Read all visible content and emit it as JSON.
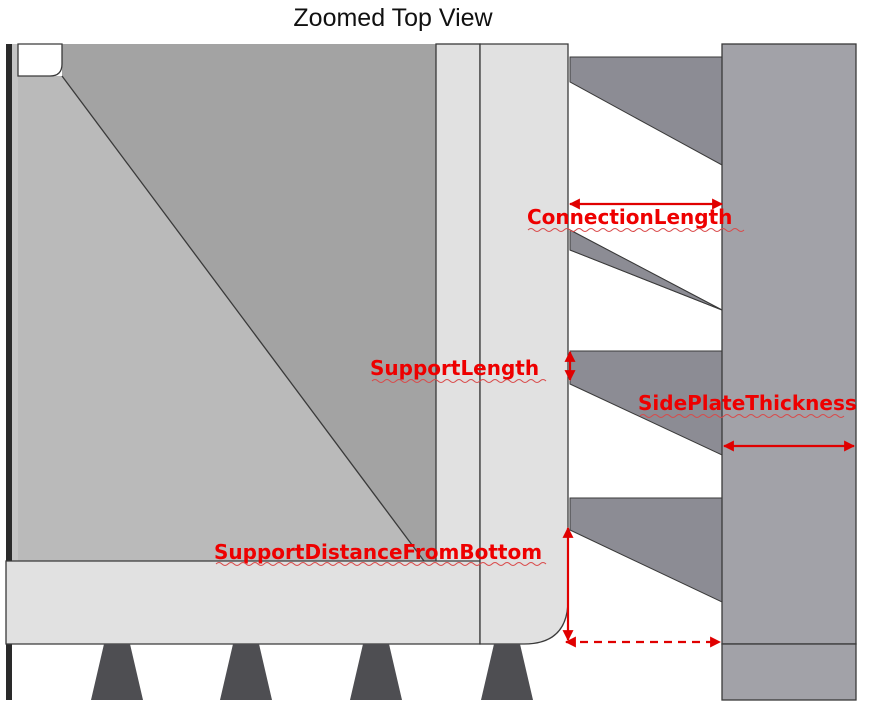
{
  "title": "Zoomed Top View",
  "dimensions": {
    "connection_length": "ConnectionLength",
    "support_length": "SupportLength",
    "side_plate_thickness": "SidePlateThickness",
    "support_distance_from_bottom": "SupportDistanceFromBottom"
  },
  "colors": {
    "dimension_red": "#e00000",
    "plate_light": "#e0e0e0",
    "wall_gray": "#a2a2a8",
    "support_gray": "#8c8c94",
    "face_light": "#bababa",
    "face_dark": "#a3a3a3",
    "peg_dark": "#4e4e52"
  }
}
